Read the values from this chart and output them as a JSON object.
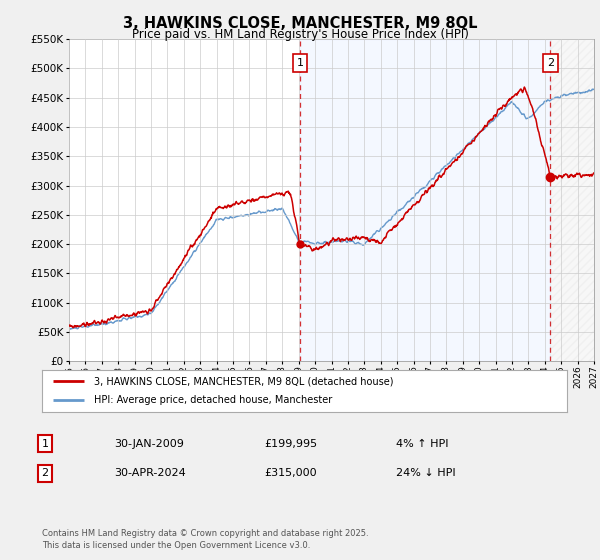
{
  "title": "3, HAWKINS CLOSE, MANCHESTER, M9 8QL",
  "subtitle": "Price paid vs. HM Land Registry's House Price Index (HPI)",
  "legend_label_red": "3, HAWKINS CLOSE, MANCHESTER, M9 8QL (detached house)",
  "legend_label_blue": "HPI: Average price, detached house, Manchester",
  "annotation1_label": "1",
  "annotation1_date": "30-JAN-2009",
  "annotation1_price": "£199,995",
  "annotation1_hpi": "4% ↑ HPI",
  "annotation2_label": "2",
  "annotation2_date": "30-APR-2024",
  "annotation2_price": "£315,000",
  "annotation2_hpi": "24% ↓ HPI",
  "footer": "Contains HM Land Registry data © Crown copyright and database right 2025.\nThis data is licensed under the Open Government Licence v3.0.",
  "xmin": 1995,
  "xmax": 2027,
  "ymin": 0,
  "ymax": 550000,
  "yticks": [
    0,
    50000,
    100000,
    150000,
    200000,
    250000,
    300000,
    350000,
    400000,
    450000,
    500000,
    550000
  ],
  "xticks": [
    1995,
    1996,
    1997,
    1998,
    1999,
    2000,
    2001,
    2002,
    2003,
    2004,
    2005,
    2006,
    2007,
    2008,
    2009,
    2010,
    2011,
    2012,
    2013,
    2014,
    2015,
    2016,
    2017,
    2018,
    2019,
    2020,
    2021,
    2022,
    2023,
    2024,
    2025,
    2026,
    2027
  ],
  "red_color": "#cc0000",
  "blue_color": "#6699cc",
  "marker1_x": 2009.08,
  "marker1_y": 199995,
  "marker2_x": 2024.33,
  "marker2_y": 315000,
  "vline1_x": 2009.08,
  "vline2_x": 2024.33,
  "bg_color": "#f0f0f0",
  "plot_bg_color": "#ffffff",
  "grid_color": "#cccccc",
  "blue_shade_start": 2009.08,
  "blue_shade_end": 2024.33,
  "grey_shade_start": 2024.33,
  "grey_shade_end": 2027,
  "annotation_box_color": "#cc0000"
}
